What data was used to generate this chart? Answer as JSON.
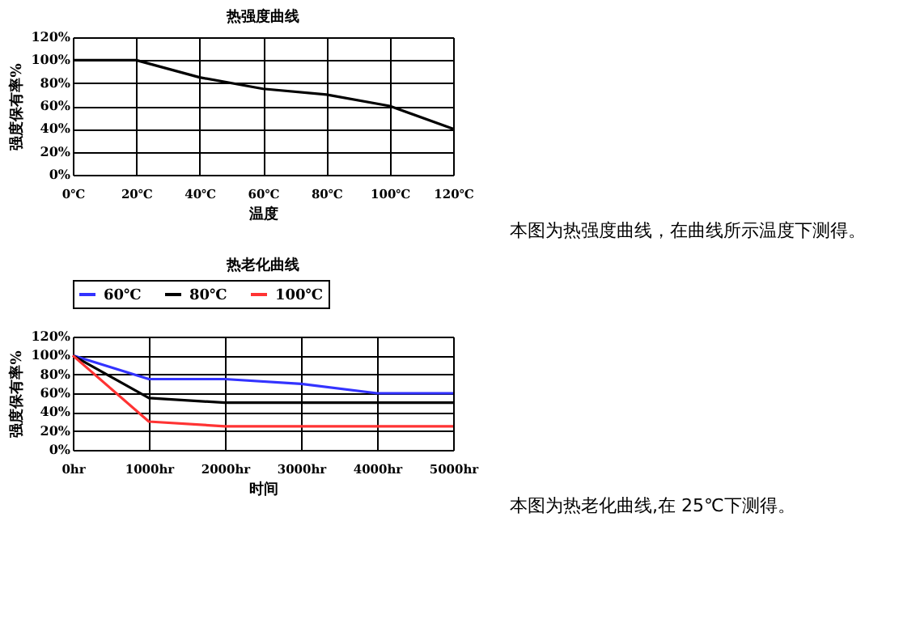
{
  "chart_data": [
    {
      "type": "line",
      "title": "热强度曲线",
      "xlabel": "温度",
      "ylabel": "强度保有率%",
      "categories": [
        "0℃",
        "20℃",
        "40℃",
        "60℃",
        "80℃",
        "100℃",
        "120℃"
      ],
      "series": [
        {
          "color": "#000000",
          "values": [
            100,
            100,
            85,
            75,
            70,
            60,
            40
          ]
        }
      ],
      "ylim": [
        0,
        120
      ],
      "yticks": [
        {
          "value": 0,
          "label": "0%"
        },
        {
          "value": 20,
          "label": "20%"
        },
        {
          "value": 40,
          "label": "40%"
        },
        {
          "value": 60,
          "label": "60%"
        },
        {
          "value": 80,
          "label": "80%"
        },
        {
          "value": 100,
          "label": "100%"
        },
        {
          "value": 120,
          "label": "120%"
        }
      ],
      "grid": true,
      "marker": "none",
      "line_style": "solid",
      "annotations": [
        "本图为热强度曲线，在曲线所示温度下测得。"
      ]
    },
    {
      "type": "line",
      "title": "热老化曲线",
      "xlabel": "时间",
      "ylabel": "强度保有率%",
      "categories": [
        "0hr",
        "1000hr",
        "2000hr",
        "3000hr",
        "4000hr",
        "5000hr"
      ],
      "series": [
        {
          "name": "60℃",
          "color": "#3333ff",
          "values": [
            100,
            75,
            75,
            70,
            60,
            60
          ]
        },
        {
          "name": "80℃",
          "color": "#000000",
          "values": [
            100,
            55,
            50,
            50,
            50,
            50
          ]
        },
        {
          "name": "100℃",
          "color": "#ff3333",
          "values": [
            100,
            30,
            25,
            25,
            25,
            25
          ]
        }
      ],
      "ylim": [
        0,
        120
      ],
      "yticks": [
        {
          "value": 0,
          "label": "0%"
        },
        {
          "value": 20,
          "label": "20%"
        },
        {
          "value": 40,
          "label": "40%"
        },
        {
          "value": 60,
          "label": "60%"
        },
        {
          "value": 80,
          "label": "80%"
        },
        {
          "value": 100,
          "label": "100%"
        },
        {
          "value": 120,
          "label": "120%"
        }
      ],
      "grid": true,
      "legend": "top",
      "marker": "none",
      "line_style": "solid",
      "annotations": [
        "本图为热老化曲线,在 25℃下测得。"
      ]
    }
  ]
}
